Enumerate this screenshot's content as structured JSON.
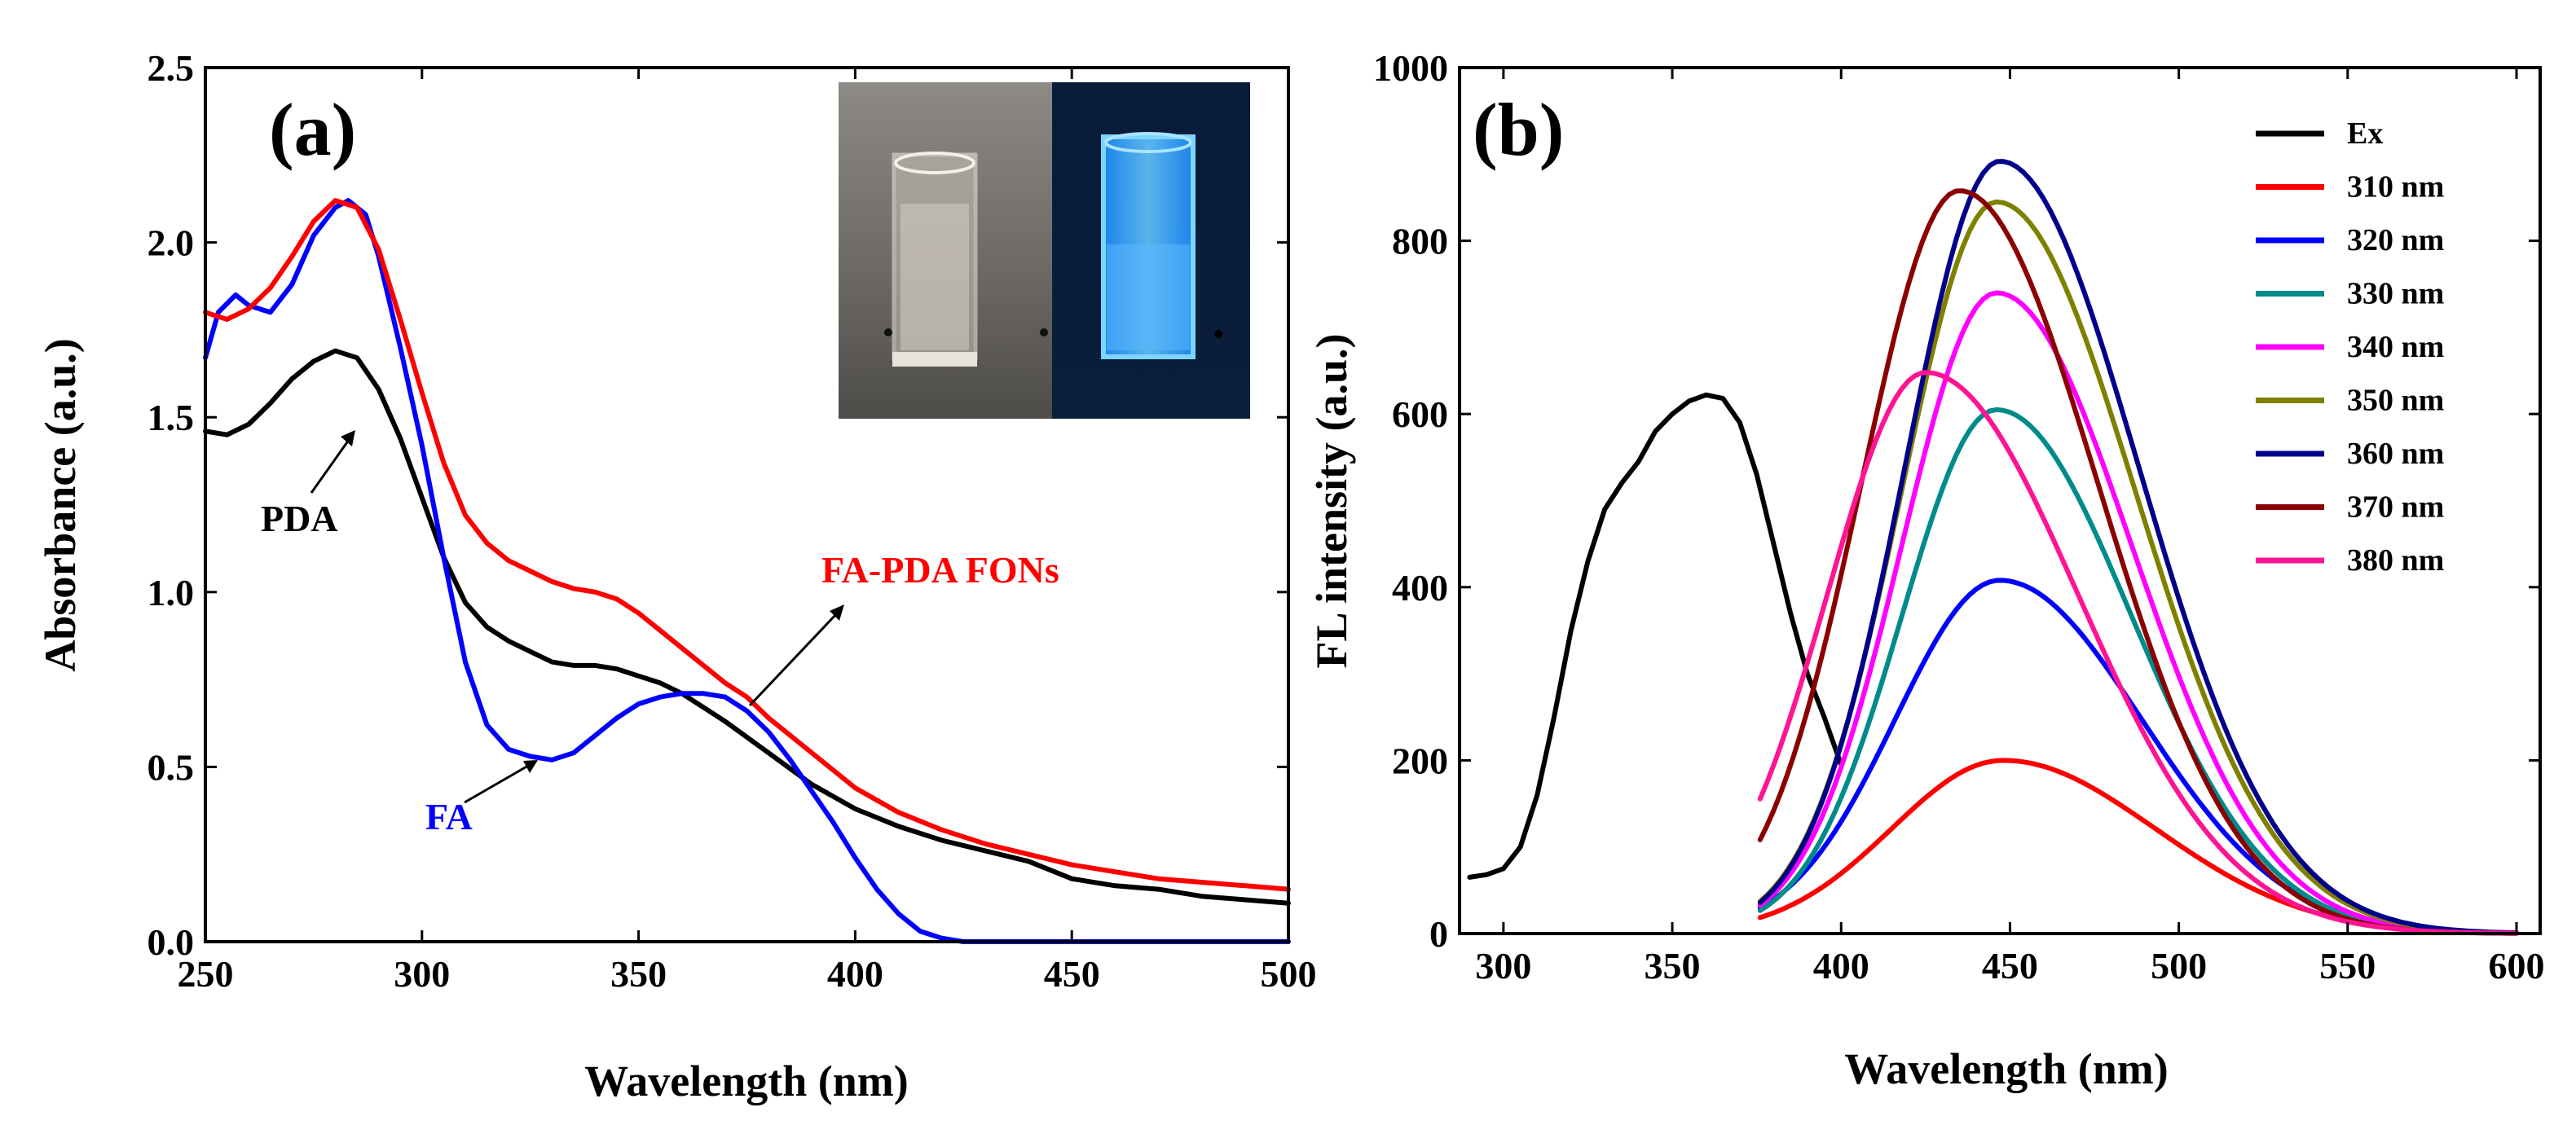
{
  "chart_data": [
    {
      "panel": "(a)",
      "type": "line",
      "xlabel": "Wavelength (nm)",
      "ylabel": "Absorbance (a.u.)",
      "xlim": [
        250,
        500
      ],
      "ylim": [
        0,
        2.5
      ],
      "xticks": [
        250,
        300,
        350,
        400,
        450,
        500
      ],
      "yticks": [
        0.0,
        0.5,
        1.0,
        1.5,
        2.0,
        2.5
      ],
      "xtick_labels": [
        "250",
        "300",
        "350",
        "400",
        "450",
        "500"
      ],
      "ytick_labels": [
        "0.0",
        "0.5",
        "1.0",
        "1.5",
        "2.0",
        "2.5"
      ],
      "inset": "photo of two cuvettes: clear solution under daylight and blue-fluorescent solution under UV light",
      "series": [
        {
          "name": "PDA",
          "color": "#000000",
          "x": [
            250,
            255,
            260,
            265,
            270,
            275,
            280,
            285,
            290,
            295,
            300,
            305,
            310,
            315,
            320,
            325,
            330,
            335,
            340,
            345,
            350,
            355,
            360,
            365,
            370,
            380,
            390,
            400,
            410,
            420,
            430,
            440,
            450,
            460,
            470,
            480,
            490,
            500
          ],
          "y": [
            1.46,
            1.45,
            1.48,
            1.54,
            1.61,
            1.66,
            1.69,
            1.67,
            1.58,
            1.44,
            1.27,
            1.1,
            0.97,
            0.9,
            0.86,
            0.83,
            0.8,
            0.79,
            0.79,
            0.78,
            0.76,
            0.74,
            0.71,
            0.67,
            0.63,
            0.54,
            0.45,
            0.38,
            0.33,
            0.29,
            0.26,
            0.23,
            0.18,
            0.16,
            0.15,
            0.13,
            0.12,
            0.11
          ]
        },
        {
          "name": "FA",
          "color": "#0000ff",
          "x": [
            250,
            253,
            257,
            260,
            265,
            270,
            275,
            280,
            283,
            287,
            290,
            295,
            300,
            305,
            310,
            315,
            320,
            325,
            330,
            335,
            340,
            345,
            350,
            355,
            360,
            365,
            370,
            375,
            380,
            385,
            390,
            395,
            400,
            405,
            410,
            415,
            420,
            425,
            430,
            440,
            450,
            460,
            480,
            500
          ],
          "y": [
            1.67,
            1.8,
            1.85,
            1.82,
            1.8,
            1.88,
            2.02,
            2.1,
            2.12,
            2.08,
            1.96,
            1.7,
            1.42,
            1.1,
            0.8,
            0.62,
            0.55,
            0.53,
            0.52,
            0.54,
            0.59,
            0.64,
            0.68,
            0.7,
            0.71,
            0.71,
            0.7,
            0.66,
            0.6,
            0.52,
            0.43,
            0.34,
            0.24,
            0.15,
            0.08,
            0.03,
            0.01,
            0.0,
            0.0,
            0.0,
            0.0,
            0.0,
            0.0,
            0.0
          ]
        },
        {
          "name": "FA-PDA FONs",
          "color": "#ff0000",
          "x": [
            250,
            255,
            260,
            265,
            270,
            275,
            280,
            285,
            290,
            295,
            300,
            305,
            310,
            315,
            320,
            325,
            330,
            335,
            340,
            345,
            350,
            355,
            360,
            365,
            370,
            375,
            380,
            390,
            400,
            410,
            420,
            430,
            440,
            450,
            460,
            470,
            480,
            490,
            500
          ],
          "y": [
            1.8,
            1.78,
            1.81,
            1.87,
            1.96,
            2.06,
            2.12,
            2.1,
            1.98,
            1.78,
            1.57,
            1.37,
            1.22,
            1.14,
            1.09,
            1.06,
            1.03,
            1.01,
            1.0,
            0.98,
            0.94,
            0.89,
            0.84,
            0.79,
            0.74,
            0.7,
            0.64,
            0.54,
            0.44,
            0.37,
            0.32,
            0.28,
            0.25,
            0.22,
            0.2,
            0.18,
            0.17,
            0.16,
            0.15
          ]
        }
      ],
      "annotations": [
        {
          "text": "PDA",
          "points_to_x": 283,
          "points_to_y": 1.66
        },
        {
          "text": "FA",
          "points_to_x": 330,
          "points_to_y": 0.53
        },
        {
          "text": "FA-PDA FONs",
          "points_to_x": 373,
          "points_to_y": 0.65
        }
      ]
    },
    {
      "panel": "(b)",
      "type": "line",
      "xlabel": "Wavelength (nm)",
      "ylabel": "FL intensity (a.u.)",
      "xlim": [
        287,
        607
      ],
      "ylim": [
        0,
        1000
      ],
      "xticks": [
        300,
        350,
        400,
        450,
        500,
        550,
        600
      ],
      "yticks": [
        0,
        200,
        400,
        600,
        800,
        1000
      ],
      "xtick_labels": [
        "300",
        "350",
        "400",
        "450",
        "500",
        "550",
        "600"
      ],
      "ytick_labels": [
        "0",
        "200",
        "400",
        "600",
        "800",
        "1000"
      ],
      "legend_position": "top-right",
      "series": [
        {
          "name": "Ex",
          "color": "#000000",
          "x": [
            290,
            295,
            300,
            305,
            310,
            315,
            320,
            325,
            330,
            335,
            340,
            345,
            350,
            355,
            360,
            365,
            370,
            375,
            380,
            385,
            390,
            395,
            400
          ],
          "y": [
            65,
            68,
            75,
            100,
            160,
            250,
            350,
            430,
            490,
            520,
            545,
            580,
            600,
            615,
            622,
            618,
            590,
            530,
            450,
            370,
            300,
            250,
            195
          ]
        },
        {
          "name": "310 nm",
          "color": "#ff0000",
          "peak": 448,
          "amp": 200,
          "sigL": 33,
          "sigR": 45,
          "start": 376
        },
        {
          "name": "320 nm",
          "color": "#0000ff",
          "peak": 447,
          "amp": 408,
          "sigL": 31,
          "sigR": 42,
          "start": 376
        },
        {
          "name": "330 nm",
          "color": "#008b8b",
          "peak": 446,
          "amp": 605,
          "sigL": 28,
          "sigR": 40,
          "start": 376
        },
        {
          "name": "340 nm",
          "color": "#ff00ff",
          "peak": 446,
          "amp": 740,
          "sigL": 28,
          "sigR": 40,
          "start": 376
        },
        {
          "name": "350 nm",
          "color": "#808000",
          "peak": 446,
          "amp": 845,
          "sigL": 28,
          "sigR": 41,
          "start": 376
        },
        {
          "name": "360 nm",
          "color": "#00008b",
          "peak": 447,
          "amp": 892,
          "sigL": 28,
          "sigR": 41,
          "start": 376
        },
        {
          "name": "370 nm",
          "color": "#8b0000",
          "peak": 435,
          "amp": 858,
          "sigL": 29,
          "sigR": 41,
          "start": 376
        },
        {
          "name": "380 nm",
          "color": "#ff1493",
          "peak": 425,
          "amp": 648,
          "sigL": 29,
          "sigR": 45,
          "start": 376
        }
      ]
    }
  ]
}
